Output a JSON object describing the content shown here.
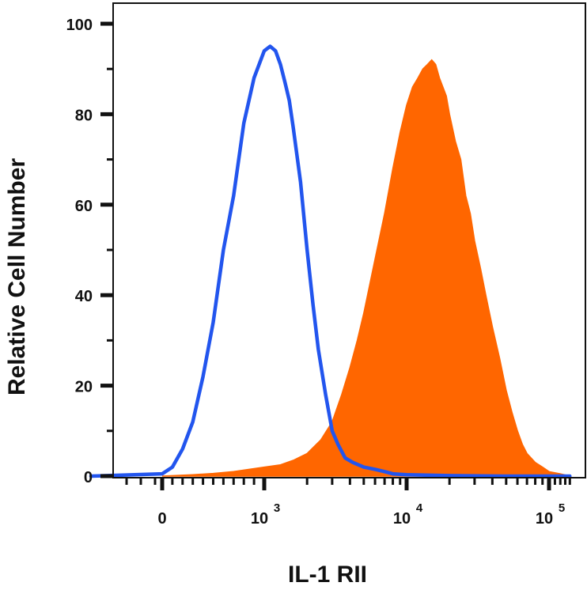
{
  "chart_data": {
    "type": "area",
    "title": "",
    "xlabel": "IL-1 RII",
    "ylabel": "Relative Cell Number",
    "x_scale": "biexponential (linear near 0, log above)",
    "xlim": [
      -1000,
      150000
    ],
    "ylim": [
      0,
      103
    ],
    "y_ticks": [
      0,
      20,
      40,
      60,
      80,
      100
    ],
    "x_tick_labels": [
      {
        "value": 0,
        "base": "0",
        "exp": ""
      },
      {
        "value": 1000,
        "base": "10",
        "exp": "3"
      },
      {
        "value": 10000,
        "base": "10",
        "exp": "4"
      },
      {
        "value": 100000,
        "base": "10",
        "exp": "5"
      }
    ],
    "grid": false,
    "legend": "none",
    "series": [
      {
        "style": "filled",
        "color": "#ff6600",
        "x": [
          0,
          300,
          500,
          700,
          1000,
          1300,
          1600,
          2000,
          2500,
          3000,
          3500,
          4000,
          4500,
          5000,
          6000,
          7000,
          8000,
          9000,
          10000,
          11000,
          12000,
          13000,
          14000,
          15000,
          16000,
          17000,
          18000,
          19000,
          20000,
          22000,
          24000,
          26000,
          28000,
          30000,
          33000,
          36000,
          40000,
          45000,
          50000,
          55000,
          60000,
          65000,
          70000,
          80000,
          90000,
          100000,
          120000,
          140000
        ],
        "y": [
          0,
          0.3,
          0.6,
          1,
          2,
          2.5,
          3.5,
          5,
          8,
          12,
          18,
          24,
          30,
          36,
          48,
          58,
          68,
          76,
          82,
          86,
          88,
          90,
          91,
          92,
          91,
          88,
          86,
          84,
          80,
          74,
          70,
          62,
          58,
          52,
          46,
          40,
          33,
          26,
          19,
          14,
          10,
          7,
          5,
          3,
          2,
          1,
          0.5,
          0
        ]
      },
      {
        "style": "line",
        "color": "#2255ee",
        "x": [
          -1000,
          0,
          100,
          200,
          300,
          400,
          500,
          600,
          700,
          800,
          900,
          1000,
          1100,
          1200,
          1300,
          1400,
          1500,
          1600,
          1800,
          2000,
          2200,
          2400,
          2700,
          3000,
          3300,
          3700,
          4200,
          5000,
          6000,
          7000,
          8000,
          10000,
          20000,
          50000,
          100000,
          140000
        ],
        "y": [
          0,
          0.5,
          2,
          6,
          12,
          22,
          34,
          50,
          62,
          78,
          88,
          94,
          95,
          94,
          91,
          87,
          83,
          77,
          65,
          50,
          38,
          28,
          18,
          10,
          7,
          4,
          3,
          2,
          1.5,
          1,
          0.5,
          0.3,
          0.1,
          0,
          0,
          0
        ]
      }
    ]
  }
}
